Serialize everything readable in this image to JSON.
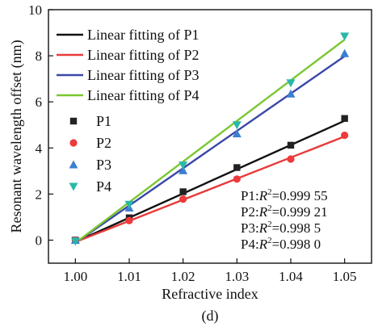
{
  "chart_data": {
    "type": "scatter",
    "xlabel": "Refractive index",
    "ylabel": "Resonant wavelength offset (nm)",
    "caption": "(d)",
    "xlim": [
      0.995,
      1.055
    ],
    "ylim": [
      -1,
      10
    ],
    "x_ticks": [
      "1.00",
      "1.01",
      "1.02",
      "1.03",
      "1.04",
      "1.05"
    ],
    "y_ticks": [
      "0",
      "2",
      "4",
      "6",
      "8",
      "10"
    ],
    "x_tick_values": [
      1.0,
      1.01,
      1.02,
      1.03,
      1.04,
      1.05
    ],
    "y_tick_values": [
      0,
      2,
      4,
      6,
      8,
      10
    ],
    "legend_placement": "top-left",
    "x": [
      1.0,
      1.01,
      1.02,
      1.03,
      1.04,
      1.05
    ],
    "series": [
      {
        "name": "P1",
        "color": "#222222",
        "marker": "square",
        "values": [
          0.0,
          0.97,
          2.1,
          3.15,
          4.12,
          5.28
        ]
      },
      {
        "name": "P2",
        "color": "#ee3a3a",
        "marker": "circle",
        "values": [
          0.0,
          0.85,
          1.78,
          2.65,
          3.52,
          4.55
        ]
      },
      {
        "name": "P3",
        "color": "#3c7fd0",
        "marker": "triangle-up",
        "values": [
          0.0,
          1.4,
          3.02,
          4.62,
          6.35,
          8.1
        ]
      },
      {
        "name": "P4",
        "color": "#29b8a8",
        "marker": "triangle-down",
        "values": [
          -0.05,
          1.55,
          3.25,
          5.0,
          6.82,
          8.85
        ]
      }
    ],
    "fits": [
      {
        "name": "Linear fitting of P1",
        "color": "#111111",
        "y_start": -0.08,
        "y_end": 5.18
      },
      {
        "name": "Linear fitting of P2",
        "color": "#e83a3a",
        "y_start": -0.08,
        "y_end": 4.5
      },
      {
        "name": "Linear fitting of P3",
        "color": "#3a48a8",
        "y_start": -0.12,
        "y_end": 7.98
      },
      {
        "name": "Linear fitting of P4",
        "color": "#7ac732",
        "y_start": -0.12,
        "y_end": 8.7
      }
    ],
    "annotations": [
      {
        "prefix": "P1:",
        "value": "=0.999 55"
      },
      {
        "prefix": "P2:",
        "value": "=0.999 21"
      },
      {
        "prefix": "P3:",
        "value": "=0.998 5"
      },
      {
        "prefix": "P4:",
        "value": "=0.998 0"
      }
    ],
    "annotation_symbol": "R",
    "annotation_power": "2"
  }
}
